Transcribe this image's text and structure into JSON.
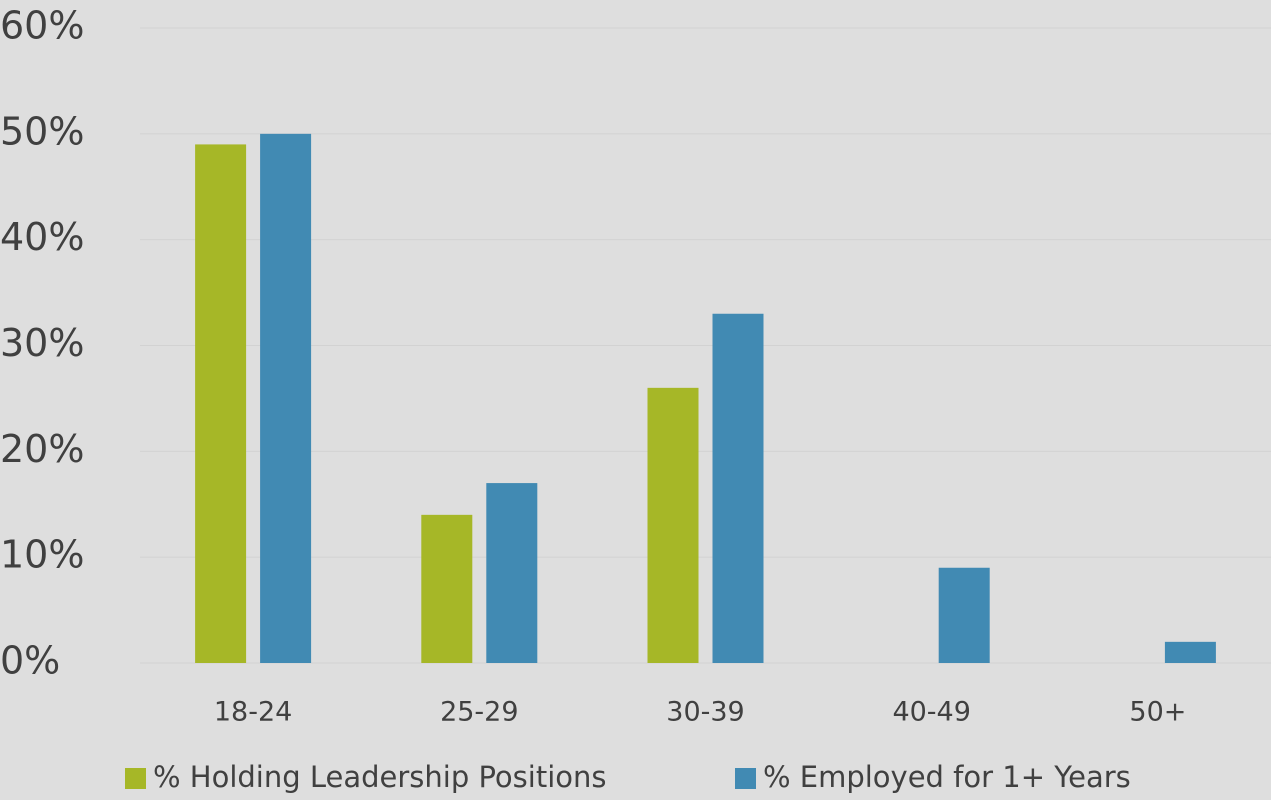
{
  "chart_data": {
    "type": "bar",
    "categories": [
      "18-24",
      "25-29",
      "30-39",
      "40-49",
      "50+"
    ],
    "series": [
      {
        "name": "% Holding Leadership Positions",
        "color": "#a6b727",
        "values": [
          49,
          14,
          26,
          0,
          0
        ]
      },
      {
        "name": "% Employed for 1+ Years",
        "color": "#418ab3",
        "values": [
          50,
          17,
          33,
          9,
          2
        ]
      }
    ],
    "ylim": [
      0,
      60
    ],
    "yticks": [
      {
        "value": 0,
        "label": "0%"
      },
      {
        "value": 10,
        "label": "10%"
      },
      {
        "value": 20,
        "label": "20%"
      },
      {
        "value": 30,
        "label": "30%"
      },
      {
        "value": 40,
        "label": "40%"
      },
      {
        "value": 50,
        "label": "50%"
      },
      {
        "value": 60,
        "label": "60%"
      }
    ],
    "grid": true,
    "legend": "bottom"
  }
}
